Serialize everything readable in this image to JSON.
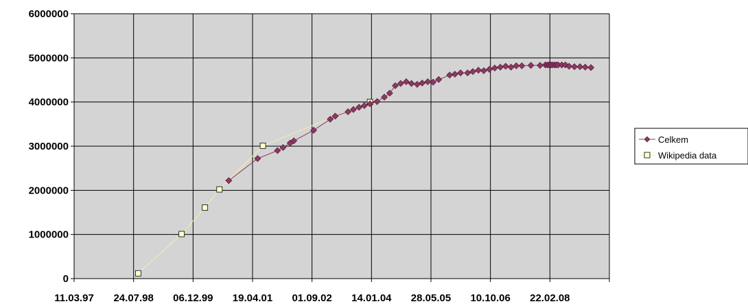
{
  "chart_data": {
    "type": "scatter",
    "title": "",
    "xlabel": "",
    "ylabel": "",
    "x_tick_labels": [
      "11.03.97",
      "24.07.98",
      "06.12.99",
      "19.04.01",
      "01.09.02",
      "14.01.04",
      "28.05.05",
      "10.10.06",
      "22.02.08"
    ],
    "xlim": [
      "1997-03-11",
      "2009-07-06"
    ],
    "ylim": [
      0,
      6000000
    ],
    "y_ticks": [
      0,
      1000000,
      2000000,
      3000000,
      4000000,
      5000000,
      6000000
    ],
    "y_tick_labels": [
      "0",
      "1000000",
      "2000000",
      "3000000",
      "4000000",
      "5000000",
      "6000000"
    ],
    "grid": true,
    "plot_background": "#d4d4d4",
    "legend_position": "right",
    "series": [
      {
        "name": "Celkem",
        "color": "#8b3a62",
        "line_color": "#8b3a62",
        "marker": "diamond",
        "points": [
          [
            "2000-10-01",
            2220000
          ],
          [
            "2001-06-01",
            2720000
          ],
          [
            "2001-11-15",
            2900000
          ],
          [
            "2002-01-01",
            2970000
          ],
          [
            "2002-03-01",
            3070000
          ],
          [
            "2002-04-01",
            3120000
          ],
          [
            "2002-09-15",
            3360000
          ],
          [
            "2003-02-01",
            3610000
          ],
          [
            "2003-03-15",
            3680000
          ],
          [
            "2003-07-01",
            3780000
          ],
          [
            "2003-08-15",
            3830000
          ],
          [
            "2003-10-01",
            3880000
          ],
          [
            "2003-11-15",
            3920000
          ],
          [
            "2004-01-01",
            3960000
          ],
          [
            "2004-03-01",
            4010000
          ],
          [
            "2004-05-01",
            4110000
          ],
          [
            "2004-06-15",
            4200000
          ],
          [
            "2004-08-01",
            4370000
          ],
          [
            "2004-09-15",
            4420000
          ],
          [
            "2004-11-01",
            4460000
          ],
          [
            "2004-12-15",
            4420000
          ],
          [
            "2005-02-01",
            4400000
          ],
          [
            "2005-03-15",
            4430000
          ],
          [
            "2005-05-01",
            4460000
          ],
          [
            "2005-06-15",
            4450000
          ],
          [
            "2005-08-01",
            4510000
          ],
          [
            "2005-11-01",
            4610000
          ],
          [
            "2005-12-15",
            4630000
          ],
          [
            "2006-02-01",
            4660000
          ],
          [
            "2006-04-01",
            4660000
          ],
          [
            "2006-05-15",
            4690000
          ],
          [
            "2006-07-01",
            4720000
          ],
          [
            "2006-08-15",
            4710000
          ],
          [
            "2006-10-01",
            4740000
          ],
          [
            "2006-11-15",
            4770000
          ],
          [
            "2007-01-01",
            4790000
          ],
          [
            "2007-02-15",
            4810000
          ],
          [
            "2007-04-01",
            4790000
          ],
          [
            "2007-05-15",
            4820000
          ],
          [
            "2007-07-01",
            4820000
          ],
          [
            "2007-09-15",
            4830000
          ],
          [
            "2007-12-01",
            4830000
          ],
          [
            "2008-01-15",
            4840000
          ],
          [
            "2008-02-01",
            4840000
          ],
          [
            "2008-02-15",
            4840000
          ],
          [
            "2008-03-01",
            4840000
          ],
          [
            "2008-03-15",
            4840000
          ],
          [
            "2008-04-01",
            4840000
          ],
          [
            "2008-04-15",
            4840000
          ],
          [
            "2008-05-01",
            4840000
          ],
          [
            "2008-06-01",
            4840000
          ],
          [
            "2008-07-01",
            4840000
          ],
          [
            "2008-08-01",
            4810000
          ],
          [
            "2008-09-15",
            4800000
          ],
          [
            "2008-11-01",
            4800000
          ],
          [
            "2008-12-15",
            4790000
          ],
          [
            "2009-02-01",
            4780000
          ]
        ]
      },
      {
        "name": "Wikipedia data",
        "color": "#ffffcc",
        "line_color": "#f0f0b0",
        "marker": "square",
        "points": [
          [
            "1998-09-01",
            120000
          ],
          [
            "1999-09-01",
            1010000
          ],
          [
            "2000-03-15",
            1610000
          ],
          [
            "2000-07-15",
            2020000
          ],
          [
            "2001-07-15",
            3010000
          ],
          [
            "2004-01-01",
            4000000
          ]
        ]
      }
    ]
  }
}
